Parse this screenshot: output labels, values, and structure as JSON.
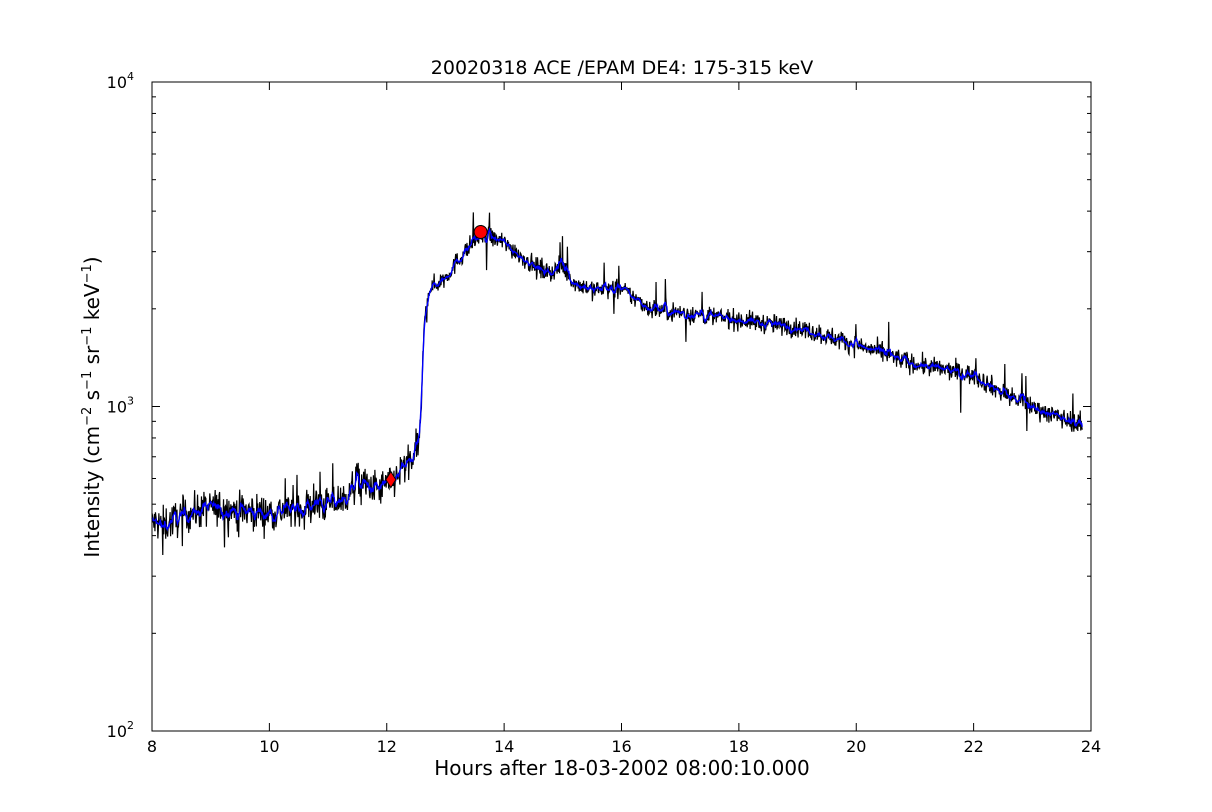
{
  "chart_data": {
    "type": "line",
    "title": "20020318 ACE /EPAM DE4: 175-315 keV",
    "xlabel": "Hours after 18-03-2002 08:00:10.000",
    "ylabel_parts": [
      "Intensity (cm",
      "−2",
      " s",
      "−1",
      " sr",
      "−1",
      " keV",
      "−1",
      ")"
    ],
    "xlim": [
      8,
      24
    ],
    "ylim": [
      100,
      10000
    ],
    "yscale": "log",
    "grid": false,
    "xticks": [
      8,
      10,
      12,
      14,
      16,
      18,
      20,
      22,
      24
    ],
    "yticks": [
      {
        "value": 100,
        "base": "10",
        "exp": "2"
      },
      {
        "value": 1000,
        "base": "10",
        "exp": "3"
      },
      {
        "value": 10000,
        "base": "10",
        "exp": "4"
      }
    ],
    "colors": {
      "raw": "#000000",
      "smoothed": "#0000ff",
      "marker": "#ff0000"
    },
    "series_trend": {
      "x": [
        8.0,
        8.2,
        8.5,
        9.0,
        9.5,
        10.0,
        10.3,
        10.6,
        11.0,
        11.3,
        11.5,
        11.7,
        11.9,
        12.1,
        12.3,
        12.5,
        12.58,
        12.62,
        12.66,
        12.72,
        12.8,
        13.0,
        13.2,
        13.4,
        13.6,
        13.8,
        14.0,
        14.2,
        14.4,
        14.6,
        14.8,
        15.0,
        15.2,
        15.5,
        16.0,
        16.5,
        17.0,
        17.5,
        18.0,
        18.5,
        19.0,
        19.5,
        20.0,
        20.5,
        21.0,
        21.5,
        22.0,
        22.5,
        23.0,
        23.5,
        23.85
      ],
      "y": [
        440,
        430,
        460,
        490,
        480,
        470,
        480,
        490,
        500,
        520,
        600,
        560,
        560,
        590,
        650,
        720,
        850,
        1500,
        2000,
        2300,
        2350,
        2500,
        2800,
        3100,
        3350,
        3300,
        3200,
        3000,
        2800,
        2650,
        2600,
        2700,
        2400,
        2300,
        2300,
        2000,
        1950,
        1900,
        1850,
        1800,
        1750,
        1650,
        1550,
        1450,
        1350,
        1300,
        1250,
        1100,
        1000,
        920,
        880
      ]
    },
    "markers": [
      {
        "shape": "circle",
        "x": 13.6,
        "y": 3450
      },
      {
        "shape": "diamond",
        "x": 12.07,
        "y": 595
      }
    ]
  }
}
